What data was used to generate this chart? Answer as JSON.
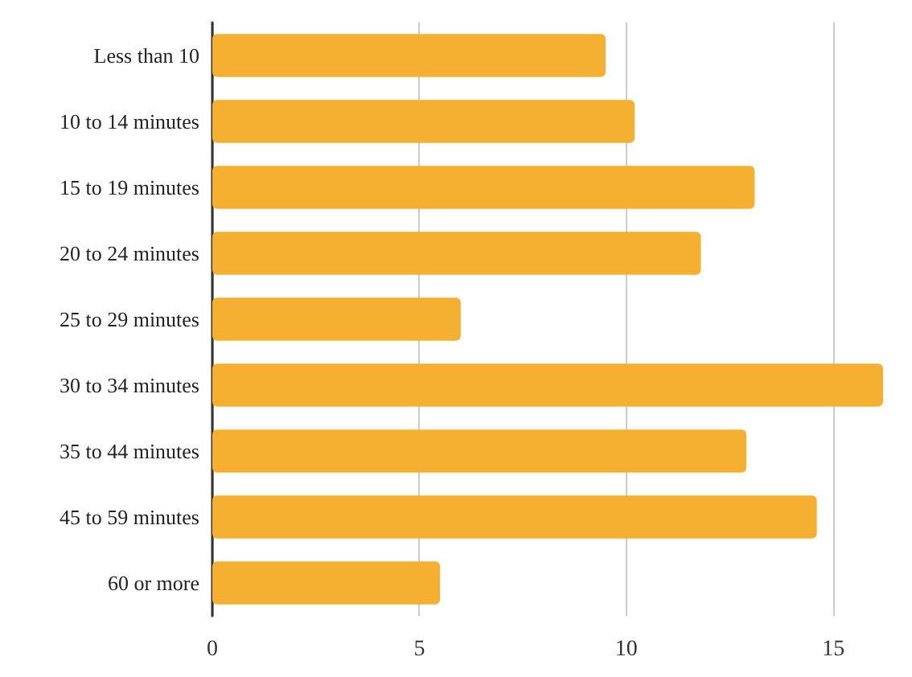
{
  "chart_data": {
    "type": "bar",
    "orientation": "horizontal",
    "categories": [
      "Less than 10",
      "10 to 14 minutes",
      "15 to 19 minutes",
      "20 to 24 minutes",
      "25 to 29 minutes",
      "30 to 34 minutes",
      "35 to 44 minutes",
      "45 to 59 minutes",
      "60 or more"
    ],
    "values": [
      9.5,
      10.2,
      13.1,
      11.8,
      6.0,
      16.2,
      12.9,
      14.6,
      5.5
    ],
    "color": "#f5b031",
    "xlim": [
      0,
      16.2
    ],
    "xticks": [
      0,
      5,
      10,
      15
    ],
    "grid": "x"
  }
}
